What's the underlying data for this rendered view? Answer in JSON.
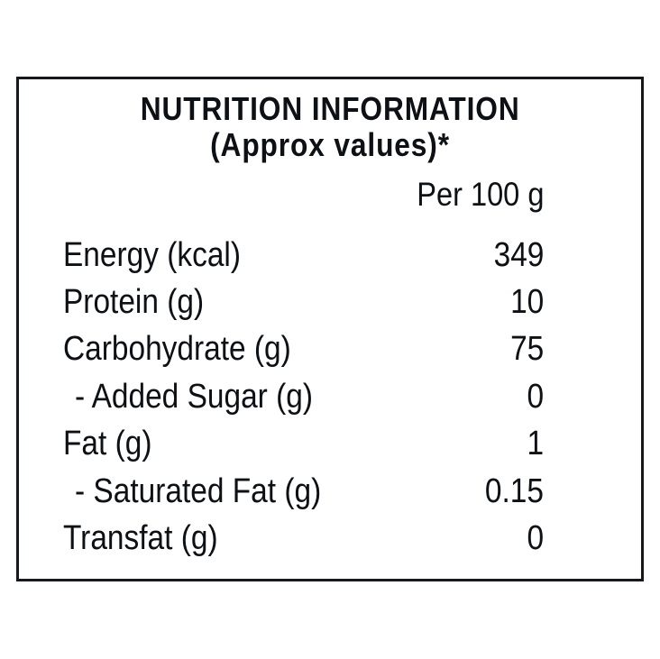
{
  "label": {
    "title": "NUTRITION INFORMATION",
    "subtitle": "(Approx values)*",
    "column_header": "Per 100 g",
    "rows": [
      {
        "name": "Energy (kcal)",
        "value": "349"
      },
      {
        "name": "Protein (g)",
        "value": "10"
      },
      {
        "name": "Carbohydrate (g)",
        "value": "75"
      },
      {
        "name": "- Added Sugar (g)",
        "value": "0"
      },
      {
        "name": "Fat (g)",
        "value": "1"
      },
      {
        "name": "- Saturated Fat (g)",
        "value": "0.15"
      },
      {
        "name": "Transfat (g)",
        "value": "0"
      }
    ],
    "colors": {
      "text": "#0d1014",
      "border": "#15181c",
      "background": "#ffffff"
    }
  }
}
